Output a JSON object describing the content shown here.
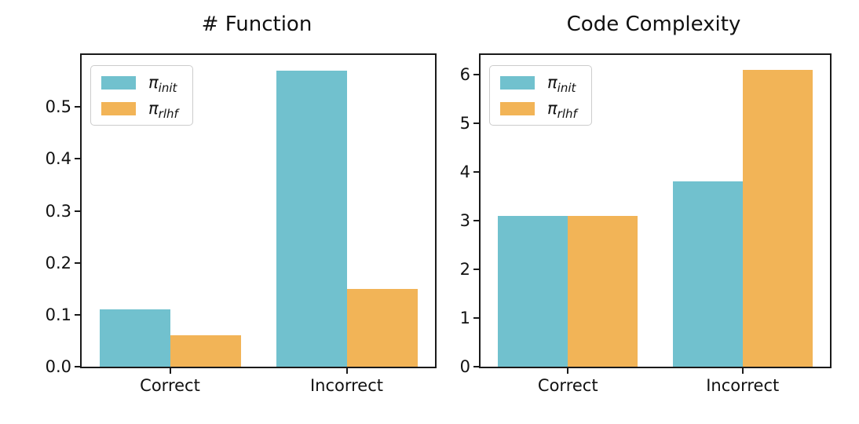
{
  "figure": {
    "background": "#ffffff",
    "axis_color": "#1a1a1a"
  },
  "chart_data": [
    {
      "type": "bar",
      "title": "# Function",
      "categories": [
        "Correct",
        "Incorrect"
      ],
      "series": [
        {
          "name": "π_init",
          "symbol": "π",
          "subscript": "init",
          "color": "#71c1ce",
          "values": [
            0.11,
            0.57
          ]
        },
        {
          "name": "π_rlhf",
          "symbol": "π",
          "subscript": "rlhf",
          "color": "#f2b457",
          "values": [
            0.06,
            0.15
          ]
        }
      ],
      "xlabel": "",
      "ylabel": "",
      "ylim": [
        0,
        0.6
      ],
      "yticks": [
        0.0,
        0.1,
        0.2,
        0.3,
        0.4,
        0.5
      ],
      "ytick_labels": [
        "0.0",
        "0.1",
        "0.2",
        "0.3",
        "0.4",
        "0.5"
      ],
      "grid": false,
      "legend_position": "upper left"
    },
    {
      "type": "bar",
      "title": "Code Complexity",
      "categories": [
        "Correct",
        "Incorrect"
      ],
      "series": [
        {
          "name": "π_init",
          "symbol": "π",
          "subscript": "init",
          "color": "#71c1ce",
          "values": [
            3.1,
            3.8
          ]
        },
        {
          "name": "π_rlhf",
          "symbol": "π",
          "subscript": "rlhf",
          "color": "#f2b457",
          "values": [
            3.1,
            6.1
          ]
        }
      ],
      "xlabel": "",
      "ylabel": "",
      "ylim": [
        0,
        6.4
      ],
      "yticks": [
        0,
        1,
        2,
        3,
        4,
        5,
        6
      ],
      "ytick_labels": [
        "0",
        "1",
        "2",
        "3",
        "4",
        "5",
        "6"
      ],
      "grid": false,
      "legend_position": "upper left"
    }
  ]
}
